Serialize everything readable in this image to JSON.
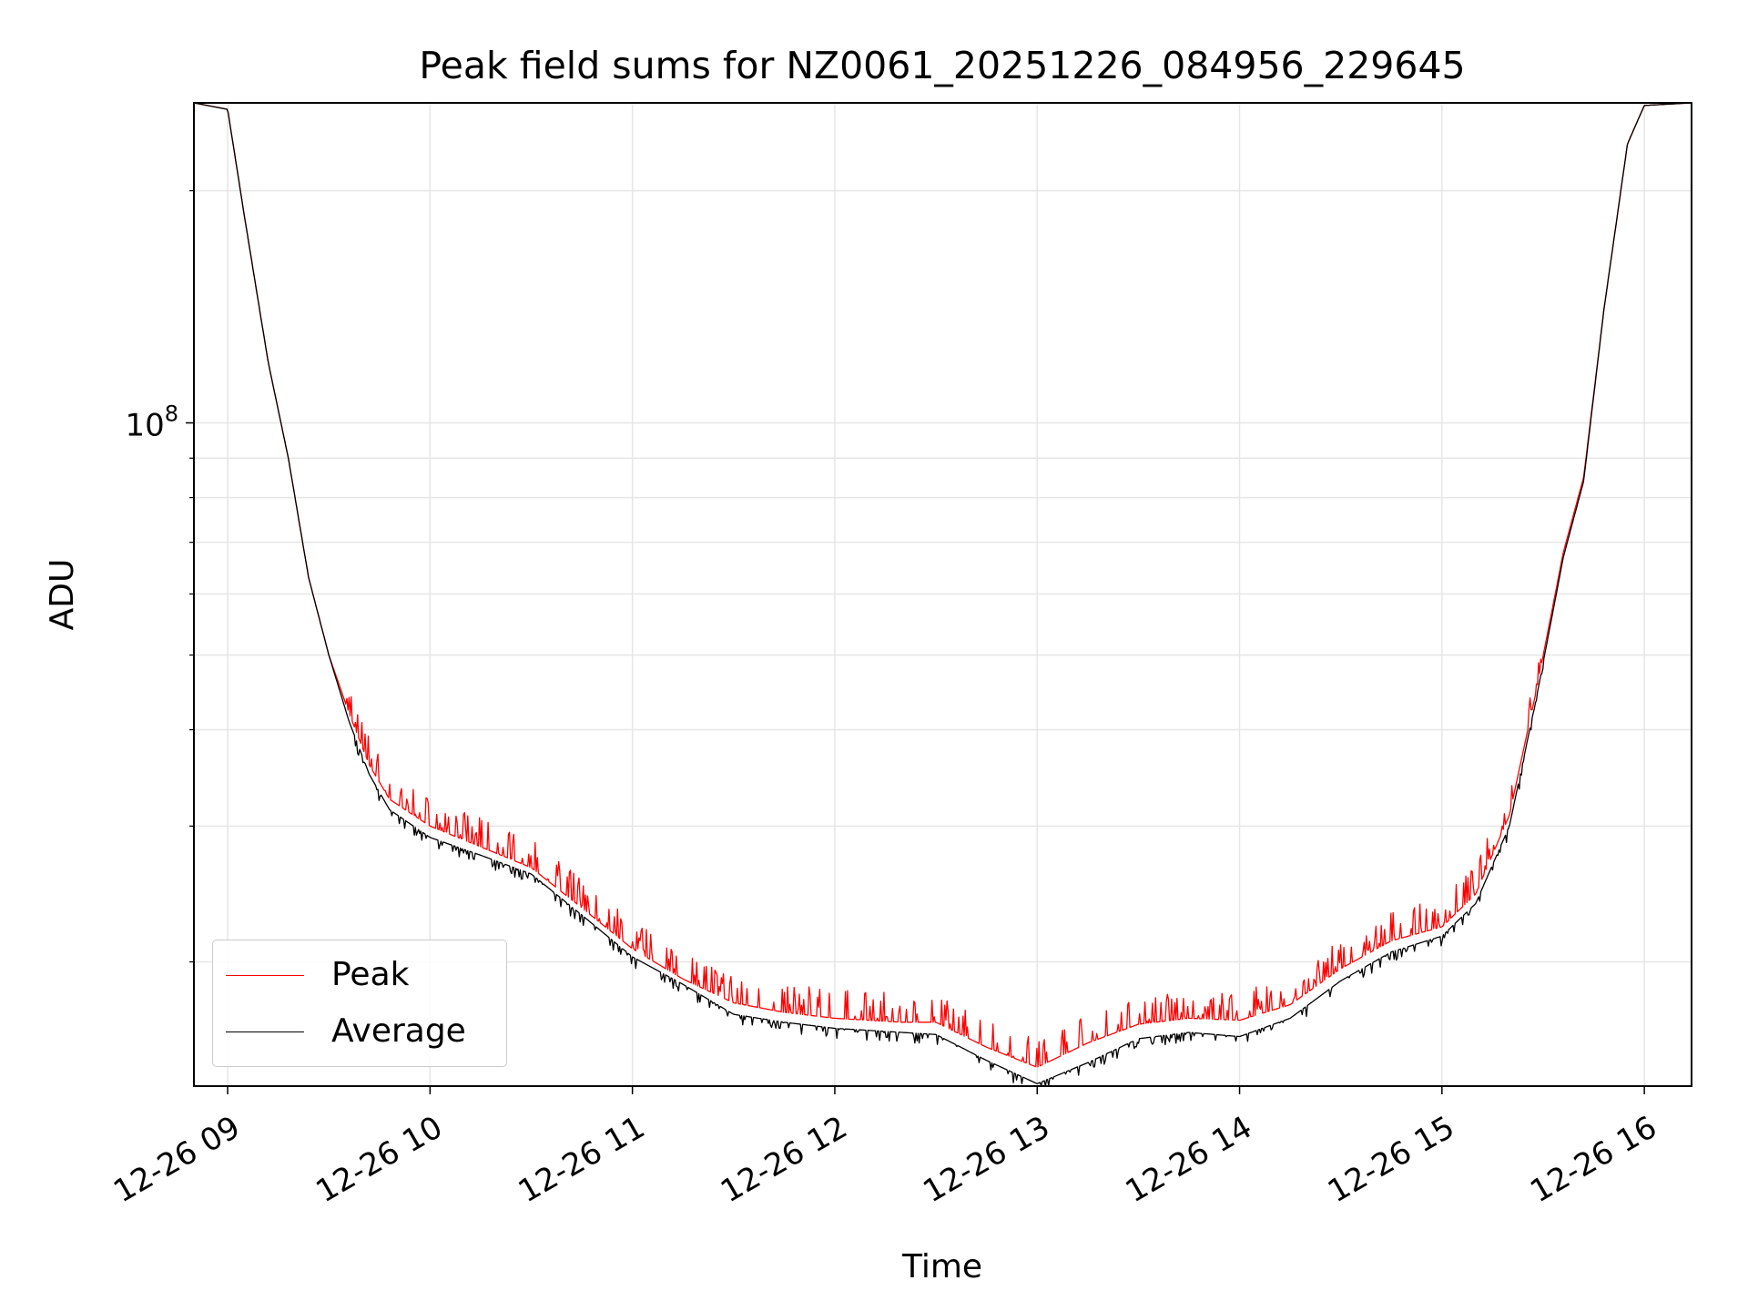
{
  "chart_data": {
    "type": "line",
    "title": "Peak field sums for NZ0061_20251226_084956_229645",
    "xlabel": "Time",
    "ylabel": "ADU",
    "yscale": "log",
    "grid": true,
    "legend_position": "lower-left",
    "x_tick_labels": [
      "12-26 09",
      "12-26 10",
      "12-26 11",
      "12-26 12",
      "12-26 13",
      "12-26 14",
      "12-26 15",
      "12-26 16"
    ],
    "y_tick_labels": [
      {
        "base": "10",
        "exponent": "8",
        "value": 100000000
      }
    ],
    "xlim": [
      "2025-12-26 08:50",
      "2025-12-26 16:14"
    ],
    "ylim": [
      13800000,
      260000000
    ],
    "series": [
      {
        "name": "Peak",
        "color": "#ff0000",
        "points": [
          [
            "2025-12-26 08:50",
            260000000
          ],
          [
            "2025-12-26 09:00",
            255000000
          ],
          [
            "2025-12-26 09:05",
            185000000
          ],
          [
            "2025-12-26 09:12",
            120000000
          ],
          [
            "2025-12-26 09:18",
            90000000
          ],
          [
            "2025-12-26 09:24",
            63000000
          ],
          [
            "2025-12-26 09:30",
            50000000
          ],
          [
            "2025-12-26 09:36",
            42000000
          ],
          [
            "2025-12-26 09:42",
            36000000
          ],
          [
            "2025-12-26 09:48",
            32500000
          ],
          [
            "2025-12-26 10:00",
            30000000
          ],
          [
            "2025-12-26 10:15",
            28200000
          ],
          [
            "2025-12-26 10:30",
            26500000
          ],
          [
            "2025-12-26 10:45",
            23500000
          ],
          [
            "2025-12-26 11:00",
            20800000
          ],
          [
            "2025-12-26 11:15",
            19000000
          ],
          [
            "2025-12-26 11:30",
            17700000
          ],
          [
            "2025-12-26 11:45",
            17200000
          ],
          [
            "2025-12-26 12:00",
            16900000
          ],
          [
            "2025-12-26 12:20",
            16700000
          ],
          [
            "2025-12-26 12:30",
            16700000
          ],
          [
            "2025-12-26 12:45",
            15500000
          ],
          [
            "2025-12-26 13:00",
            14600000
          ],
          [
            "2025-12-26 13:15",
            15700000
          ],
          [
            "2025-12-26 13:30",
            16600000
          ],
          [
            "2025-12-26 13:45",
            16900000
          ],
          [
            "2025-12-26 14:00",
            16800000
          ],
          [
            "2025-12-26 14:15",
            17600000
          ],
          [
            "2025-12-26 14:30",
            19600000
          ],
          [
            "2025-12-26 14:45",
            21300000
          ],
          [
            "2025-12-26 15:00",
            22200000
          ],
          [
            "2025-12-26 15:10",
            24500000
          ],
          [
            "2025-12-26 15:20",
            31000000
          ],
          [
            "2025-12-26 15:28",
            45000000
          ],
          [
            "2025-12-26 15:36",
            68000000
          ],
          [
            "2025-12-26 15:42",
            85000000
          ],
          [
            "2025-12-26 15:48",
            140000000
          ],
          [
            "2025-12-26 15:55",
            230000000
          ],
          [
            "2025-12-26 16:00",
            258000000
          ],
          [
            "2025-12-26 16:14",
            260000000
          ]
        ]
      },
      {
        "name": "Average",
        "color": "#000000",
        "points": [
          [
            "2025-12-26 08:50",
            260000000
          ],
          [
            "2025-12-26 09:00",
            255000000
          ],
          [
            "2025-12-26 09:05",
            185000000
          ],
          [
            "2025-12-26 09:12",
            120000000
          ],
          [
            "2025-12-26 09:18",
            90000000
          ],
          [
            "2025-12-26 09:24",
            63000000
          ],
          [
            "2025-12-26 09:30",
            50000000
          ],
          [
            "2025-12-26 09:36",
            41000000
          ],
          [
            "2025-12-26 09:42",
            35000000
          ],
          [
            "2025-12-26 09:48",
            31500000
          ],
          [
            "2025-12-26 10:00",
            29000000
          ],
          [
            "2025-12-26 10:15",
            27500000
          ],
          [
            "2025-12-26 10:30",
            26000000
          ],
          [
            "2025-12-26 10:45",
            23000000
          ],
          [
            "2025-12-26 11:00",
            20300000
          ],
          [
            "2025-12-26 11:15",
            18700000
          ],
          [
            "2025-12-26 11:30",
            17100000
          ],
          [
            "2025-12-26 11:45",
            16700000
          ],
          [
            "2025-12-26 12:00",
            16400000
          ],
          [
            "2025-12-26 12:20",
            16200000
          ],
          [
            "2025-12-26 12:30",
            16100000
          ],
          [
            "2025-12-26 12:45",
            14900000
          ],
          [
            "2025-12-26 13:00",
            13900000
          ],
          [
            "2025-12-26 13:15",
            14800000
          ],
          [
            "2025-12-26 13:30",
            15900000
          ],
          [
            "2025-12-26 13:45",
            16200000
          ],
          [
            "2025-12-26 14:00",
            16000000
          ],
          [
            "2025-12-26 14:15",
            16900000
          ],
          [
            "2025-12-26 14:30",
            18900000
          ],
          [
            "2025-12-26 14:45",
            20600000
          ],
          [
            "2025-12-26 15:00",
            21600000
          ],
          [
            "2025-12-26 15:10",
            23800000
          ],
          [
            "2025-12-26 15:20",
            30000000
          ],
          [
            "2025-12-26 15:28",
            44000000
          ],
          [
            "2025-12-26 15:36",
            67000000
          ],
          [
            "2025-12-26 15:42",
            84000000
          ],
          [
            "2025-12-26 15:48",
            140000000
          ],
          [
            "2025-12-26 15:55",
            230000000
          ],
          [
            "2025-12-26 16:00",
            258000000
          ],
          [
            "2025-12-26 16:14",
            260000000
          ]
        ]
      }
    ]
  }
}
